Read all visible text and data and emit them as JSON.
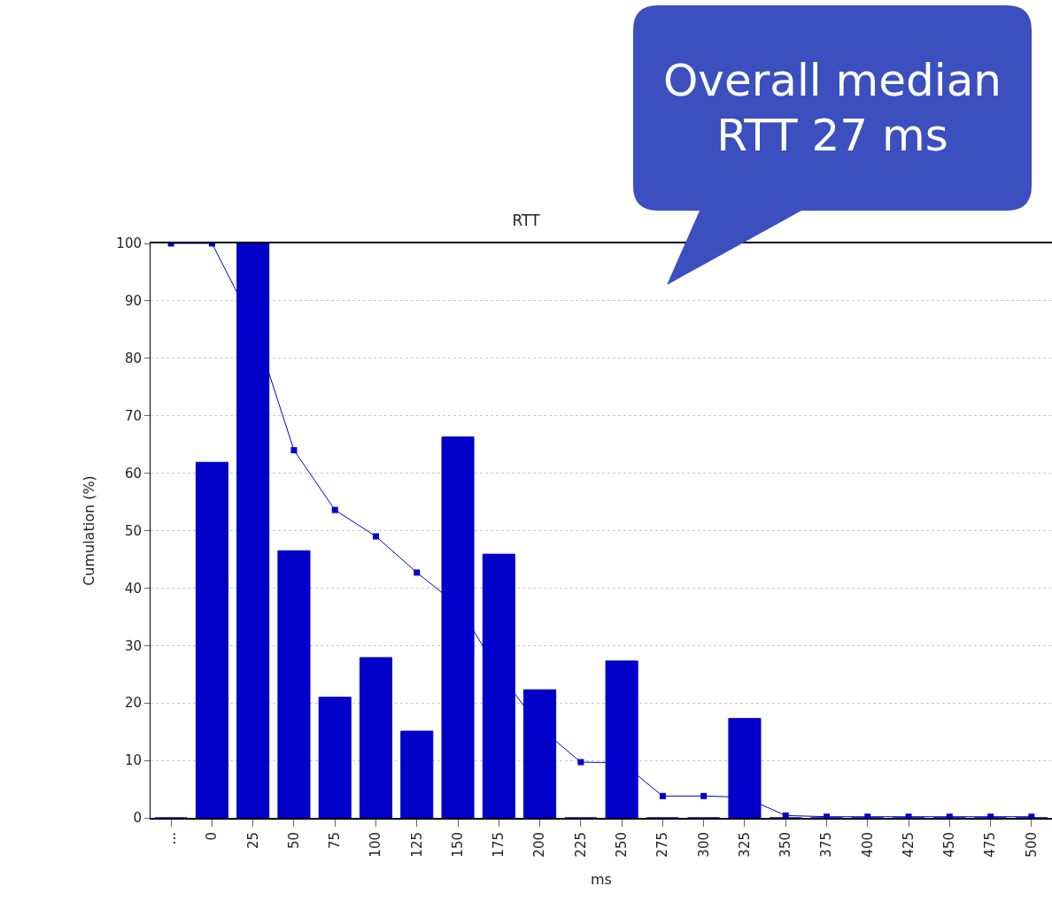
{
  "chart_data": {
    "type": "bar",
    "title": "RTT",
    "xlabel": "ms",
    "ylabel": "Cumulation (%)",
    "annotations": [
      "Overall median RTT 27 ms"
    ],
    "categories": [
      "...",
      "0",
      "25",
      "50",
      "75",
      "100",
      "125",
      "150",
      "175",
      "200",
      "225",
      "250",
      "275",
      "300",
      "325",
      "350",
      "375",
      "400",
      "425",
      "450",
      "475",
      "500"
    ],
    "series": [
      {
        "color": "#0000c8",
        "values": [
          0,
          61.9,
          100,
          46.5,
          21,
          27.9,
          15.1,
          66.3,
          45.9,
          22.3,
          0,
          27.3,
          0,
          0,
          17.3,
          0,
          0,
          0,
          0,
          0,
          0,
          0
        ]
      },
      {
        "type": "line",
        "color": "#0000cc",
        "values": [
          100,
          100,
          86,
          64,
          53.6,
          49,
          42.7,
          37,
          25.4,
          15.7,
          9.7,
          9.6,
          3.8,
          3.8,
          3.6,
          0.4,
          0.2,
          0.2,
          0.2,
          0.2,
          0.2,
          0.2
        ]
      }
    ],
    "ylim": [
      0,
      100
    ],
    "yticks": [
      0,
      10,
      20,
      30,
      40,
      50,
      60,
      70,
      80,
      90,
      100
    ],
    "grid": "y",
    "marker": "square",
    "line_style": "solid"
  }
}
